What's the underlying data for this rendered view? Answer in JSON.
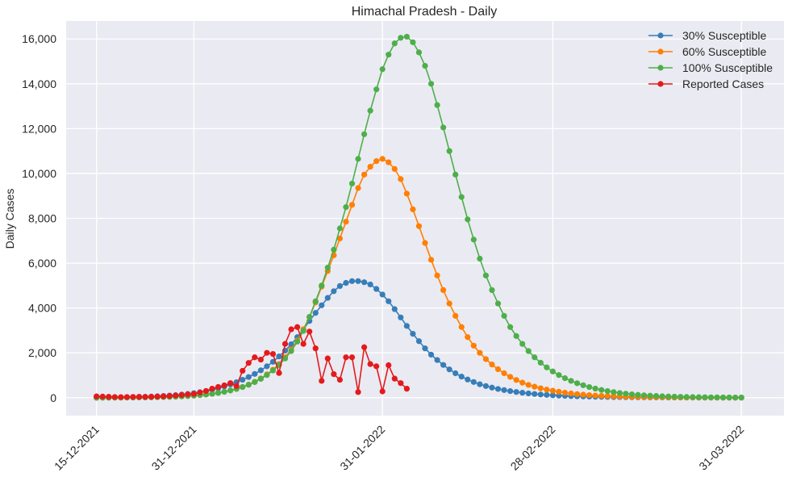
{
  "chart_data": {
    "type": "line",
    "title": "Himachal Pradesh - Daily",
    "xlabel": "",
    "ylabel": "Daily Cases",
    "ylim": [
      -800,
      16800
    ],
    "yticks": [
      0,
      2000,
      4000,
      6000,
      8000,
      10000,
      12000,
      14000,
      16000
    ],
    "ytick_labels": [
      "0",
      "2,000",
      "4,000",
      "6,000",
      "8,000",
      "10,000",
      "12,000",
      "14,000",
      "16,000"
    ],
    "xlim": [
      -5,
      113
    ],
    "xticks": [
      0,
      16,
      47,
      75,
      106
    ],
    "xtick_labels": [
      "15-12-2021",
      "31-12-2021",
      "31-01-2022",
      "28-02-2022",
      "31-03-2022"
    ],
    "x_unit": "days since 15-12-2021",
    "grid": true,
    "legend_position": "top-right",
    "series": [
      {
        "name": "30% Susceptible",
        "color": "#377eb8",
        "x_start": 0,
        "values": [
          0,
          3,
          6,
          10,
          15,
          20,
          26,
          33,
          41,
          51,
          63,
          77,
          94,
          114,
          139,
          168,
          203,
          245,
          294,
          352,
          420,
          500,
          590,
          690,
          800,
          920,
          1060,
          1220,
          1400,
          1600,
          1840,
          2100,
          2380,
          2700,
          3050,
          3420,
          3780,
          4120,
          4450,
          4750,
          4980,
          5120,
          5200,
          5200,
          5150,
          5050,
          4850,
          4600,
          4300,
          3950,
          3580,
          3200,
          2850,
          2520,
          2200,
          1920,
          1680,
          1460,
          1260,
          1090,
          940,
          810,
          700,
          600,
          520,
          450,
          390,
          340,
          295,
          255,
          220,
          190,
          165,
          143,
          124,
          108,
          94,
          82,
          72,
          63,
          55,
          48,
          42,
          37,
          32,
          28,
          25,
          22,
          19,
          17,
          15,
          13,
          11,
          10,
          9,
          8,
          7,
          6,
          5,
          4,
          4,
          3,
          3,
          2,
          2,
          2,
          1
        ]
      },
      {
        "name": "60% Susceptible",
        "color": "#ff7f00",
        "x_start": 0,
        "values": [
          0,
          1,
          2,
          3,
          5,
          7,
          9,
          12,
          15,
          19,
          24,
          30,
          38,
          48,
          60,
          75,
          93,
          115,
          142,
          175,
          215,
          265,
          325,
          395,
          480,
          585,
          710,
          860,
          1040,
          1250,
          1500,
          1800,
          2150,
          2550,
          3050,
          3600,
          4250,
          4950,
          5650,
          6350,
          7100,
          7850,
          8600,
          9350,
          9950,
          10300,
          10550,
          10650,
          10500,
          10200,
          9750,
          9100,
          8400,
          7650,
          6900,
          6150,
          5450,
          4800,
          4200,
          3650,
          3150,
          2700,
          2320,
          2000,
          1720,
          1480,
          1270,
          1090,
          930,
          790,
          670,
          570,
          490,
          420,
          360,
          310,
          265,
          225,
          190,
          160,
          135,
          115,
          98,
          84,
          72,
          62,
          53,
          45,
          39,
          33,
          28,
          24,
          20,
          17,
          14,
          12,
          10,
          9,
          8,
          7,
          6,
          5,
          4,
          3,
          3,
          2,
          2
        ]
      },
      {
        "name": "100% Susceptible",
        "color": "#4daf4a",
        "x_start": 0,
        "values": [
          0,
          1,
          2,
          3,
          4,
          6,
          8,
          10,
          13,
          17,
          22,
          28,
          36,
          46,
          58,
          73,
          91,
          113,
          140,
          173,
          213,
          262,
          320,
          390,
          475,
          575,
          695,
          840,
          1010,
          1215,
          1460,
          1750,
          2080,
          2500,
          2980,
          3600,
          4300,
          5000,
          5800,
          6600,
          7550,
          8500,
          9550,
          10650,
          11750,
          12800,
          13750,
          14650,
          15300,
          15800,
          16050,
          16100,
          15850,
          15400,
          14800,
          14000,
          13050,
          12050,
          11000,
          9950,
          8950,
          7950,
          7050,
          6200,
          5450,
          4800,
          4200,
          3650,
          3150,
          2750,
          2400,
          2080,
          1800,
          1560,
          1350,
          1170,
          1010,
          870,
          750,
          645,
          555,
          475,
          405,
          345,
          295,
          250,
          210,
          178,
          150,
          127,
          107,
          90,
          76,
          64,
          54,
          46,
          39,
          33,
          28,
          24,
          20,
          17,
          14,
          12,
          10,
          8,
          7
        ]
      },
      {
        "name": "Reported Cases",
        "color": "#e41a1c",
        "x_start": 0,
        "values": [
          60,
          50,
          40,
          30,
          25,
          30,
          35,
          40,
          35,
          40,
          50,
          60,
          80,
          100,
          120,
          150,
          170,
          230,
          300,
          400,
          480,
          550,
          650,
          520,
          1200,
          1550,
          1800,
          1700,
          2000,
          1950,
          1100,
          2400,
          3050,
          3150,
          2400,
          2950,
          2200,
          750,
          1750,
          1050,
          800,
          1800,
          1800,
          250,
          2250,
          1500,
          1400,
          280,
          1450,
          850,
          650,
          400
        ]
      }
    ]
  }
}
